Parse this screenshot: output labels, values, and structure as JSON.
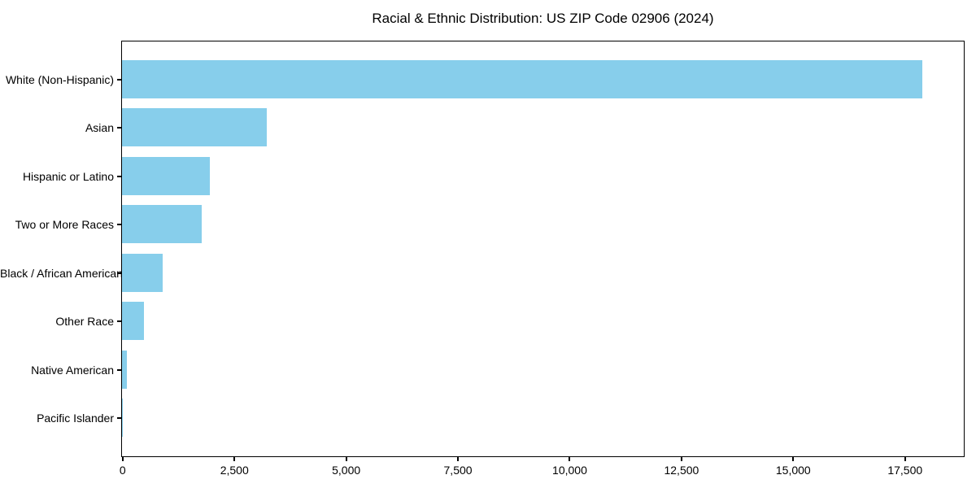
{
  "chart_data": {
    "type": "bar",
    "orientation": "horizontal",
    "title": "Racial & Ethnic Distribution: US ZIP Code 02906 (2024)",
    "categories": [
      "White (Non-Hispanic)",
      "Asian",
      "Hispanic or Latino",
      "Two or More Races",
      "Black / African American",
      "Other Race",
      "Native American",
      "Pacific Islander"
    ],
    "values": [
      17900,
      3240,
      1960,
      1780,
      910,
      490,
      115,
      15
    ],
    "xlabel": "",
    "ylabel": "",
    "xlim": [
      0,
      18800
    ],
    "x_ticks": [
      0,
      2500,
      5000,
      7500,
      10000,
      12500,
      15000,
      17500
    ],
    "x_tick_labels": [
      "0",
      "2,500",
      "5,000",
      "7,500",
      "10,000",
      "12,500",
      "15,000",
      "17,500"
    ],
    "grid": false,
    "legend": "none",
    "colors": {
      "bar": "#87CEEB",
      "axis": "#000000",
      "text": "#000000",
      "background": "#FFFFFF"
    }
  }
}
